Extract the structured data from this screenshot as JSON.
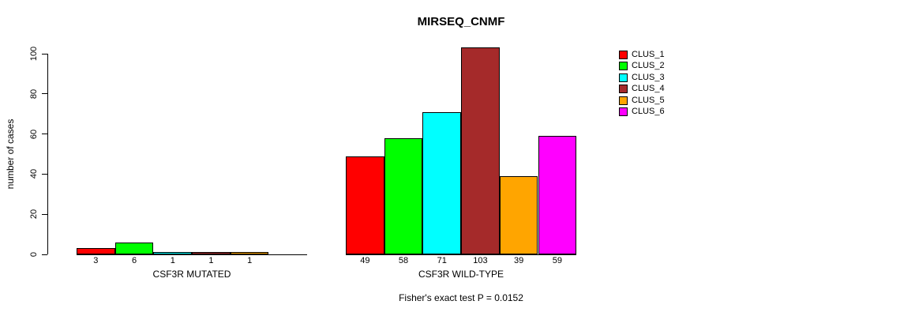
{
  "chart_data": {
    "type": "bar",
    "title": "MIRSEQ_CNMF",
    "ylabel": "number of cases",
    "ylim": [
      0,
      100
    ],
    "yticks": [
      0,
      20,
      40,
      60,
      80,
      100
    ],
    "grid": false,
    "legend_position": "right",
    "legend": [
      {
        "label": "CLUS_1",
        "color": "#FF0000"
      },
      {
        "label": "CLUS_2",
        "color": "#00FF00"
      },
      {
        "label": "CLUS_3",
        "color": "#00FFFF"
      },
      {
        "label": "CLUS_4",
        "color": "#A52A2A"
      },
      {
        "label": "CLUS_5",
        "color": "#FFA500"
      },
      {
        "label": "CLUS_6",
        "color": "#FF00FF"
      }
    ],
    "groups": [
      {
        "xlabel": "CSF3R MUTATED",
        "values": [
          3,
          6,
          1,
          1,
          1,
          0
        ],
        "bar_labels": [
          "3",
          "6",
          "1",
          "1",
          "1",
          ""
        ]
      },
      {
        "xlabel": "CSF3R WILD-TYPE",
        "values": [
          49,
          58,
          71,
          103,
          39,
          59
        ],
        "bar_labels": [
          "49",
          "58",
          "71",
          "103",
          "39",
          "59"
        ]
      }
    ],
    "footnote": "Fisher's exact test P = 0.0152",
    "text_color": "#000000",
    "background_color": "#FFFFFF"
  }
}
